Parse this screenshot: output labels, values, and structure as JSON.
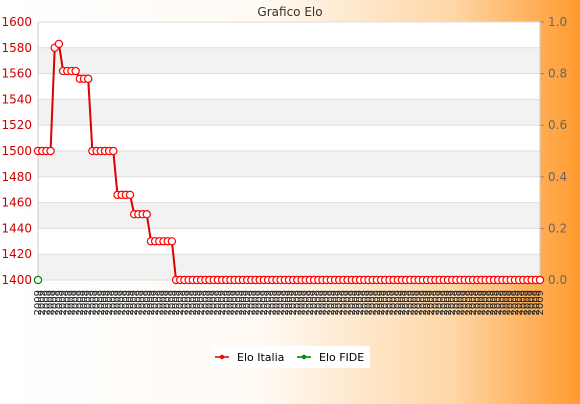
{
  "chart_data": {
    "type": "line",
    "title": "Grafico Elo",
    "ylim_left": [
      1400,
      1600
    ],
    "ylim_right": [
      0.0,
      1.0
    ],
    "yticks_left": [
      "1400",
      "1420",
      "1440",
      "1460",
      "1480",
      "1500",
      "1520",
      "1540",
      "1560",
      "1580",
      "1600"
    ],
    "yticks_right": [
      "0.0",
      "0.2",
      "0.4",
      "0.6",
      "0.8",
      "1.0"
    ],
    "grid": true,
    "grid_band_color": "#f2f2f2",
    "x_count": 121,
    "x_tick_label": "2009",
    "legend_position": "bottom",
    "series": [
      {
        "name": "Elo Italia",
        "axis": "left",
        "color": "#dd0000",
        "marker_color": "#ff0000",
        "values": [
          1500,
          1500,
          1500,
          1500,
          1580,
          1583,
          1562,
          1562,
          1562,
          1562,
          1556,
          1556,
          1556,
          1500,
          1500,
          1500,
          1500,
          1500,
          1500,
          1466,
          1466,
          1466,
          1466,
          1451,
          1451,
          1451,
          1451,
          1430,
          1430,
          1430,
          1430,
          1430,
          1430,
          1400,
          1400,
          1400,
          1400,
          1400,
          1400,
          1400,
          1400,
          1400,
          1400,
          1400,
          1400,
          1400,
          1400,
          1400,
          1400,
          1400,
          1400,
          1400,
          1400,
          1400,
          1400,
          1400,
          1400,
          1400,
          1400,
          1400,
          1400,
          1400,
          1400,
          1400,
          1400,
          1400,
          1400,
          1400,
          1400,
          1400,
          1400,
          1400,
          1400,
          1400,
          1400,
          1400,
          1400,
          1400,
          1400,
          1400,
          1400,
          1400,
          1400,
          1400,
          1400,
          1400,
          1400,
          1400,
          1400,
          1400,
          1400,
          1400,
          1400,
          1400,
          1400,
          1400,
          1400,
          1400,
          1400,
          1400,
          1400,
          1400,
          1400,
          1400,
          1400,
          1400,
          1400,
          1400,
          1400,
          1400,
          1400,
          1400,
          1400,
          1400,
          1400,
          1400,
          1400,
          1400,
          1400,
          1400,
          1400
        ]
      },
      {
        "name": "Elo FIDE",
        "axis": "left",
        "color": "#007700",
        "marker_color": "#008800",
        "values": [
          1400
        ]
      }
    ]
  },
  "colors": {
    "left_axis": "#cc0000",
    "right_axis": "#666666",
    "plot_bg": "#ffffff",
    "gradient_end": "#ff9a2e"
  }
}
